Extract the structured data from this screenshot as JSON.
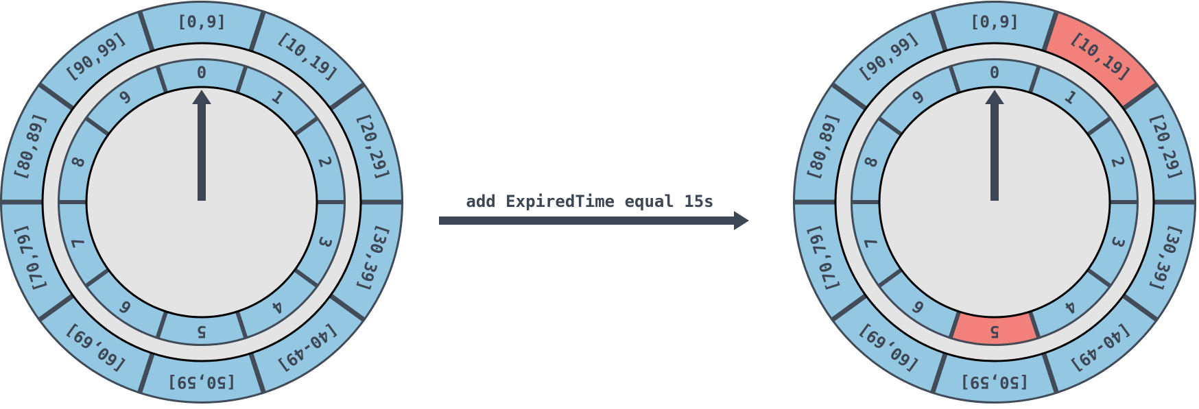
{
  "colors": {
    "segment": "#94c7e1",
    "highlight": "#f2817b",
    "stroke": "#424b58",
    "dark": "#3d4654",
    "face": "#e4e4e4"
  },
  "transition": {
    "caption": "add ExpiredTime equal 15s"
  },
  "wheels": [
    {
      "name": "wheel-before",
      "outer": [
        "[0,9]",
        "[10,19]",
        "[20,29]",
        "[30,39]",
        "[40-49]",
        "[50,59]",
        "[60,69]",
        "[70,79]",
        "[80,89]",
        "[90,99]"
      ],
      "inner": [
        "0",
        "1",
        "2",
        "3",
        "4",
        "5",
        "6",
        "7",
        "8",
        "9"
      ],
      "highlight_outer": [],
      "highlight_inner": [],
      "pointer": "0"
    },
    {
      "name": "wheel-after",
      "outer": [
        "[0,9]",
        "[10,19]",
        "[20,29]",
        "[30,39]",
        "[40-49]",
        "[50,59]",
        "[60,69]",
        "[70,79]",
        "[80,89]",
        "[90,99]"
      ],
      "inner": [
        "0",
        "1",
        "2",
        "3",
        "4",
        "5",
        "6",
        "7",
        "8",
        "9"
      ],
      "highlight_outer": [
        "[10,19]"
      ],
      "highlight_inner": [
        "5"
      ],
      "pointer": "0"
    }
  ]
}
